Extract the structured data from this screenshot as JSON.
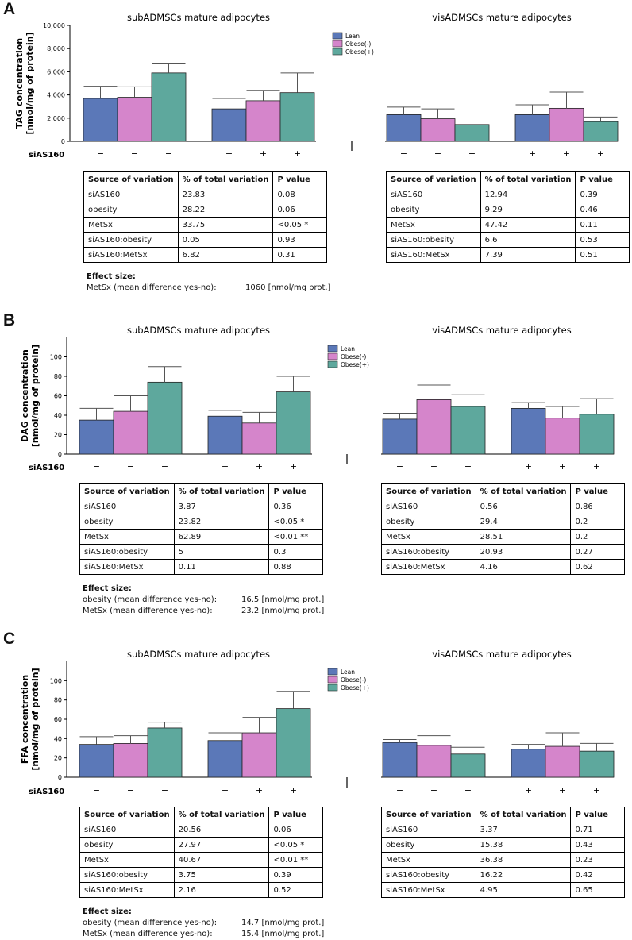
{
  "panels": [
    {
      "letter": "A",
      "y_label": [
        "TAG concentration",
        "[nmol/mg of protein]"
      ],
      "chart_data": {
        "type": "bar",
        "title_left": "subADMSCs mature adipocytes",
        "title_right": "visADMSCs mature adipocytes",
        "ylim": [
          0,
          10000
        ],
        "yticks": [
          "0",
          "2,000",
          "4,000",
          "6,000",
          "8,000",
          "10,000"
        ],
        "ytick_values": [
          0,
          2000,
          4000,
          6000,
          8000,
          10000
        ],
        "legend": [
          "Lean",
          "Obese(-)",
          "Obese(+)"
        ],
        "x_row_label": "siAS160",
        "groups": [
          {
            "name": "sub -",
            "sign": "−",
            "values": [
              3700,
              3800,
              5900
            ],
            "errors": [
              1050,
              900,
              850
            ]
          },
          {
            "name": "sub +",
            "sign": "+",
            "values": [
              2800,
              3500,
              4200
            ],
            "errors": [
              900,
              900,
              1700
            ]
          },
          {
            "name": "vis -",
            "sign": "−",
            "values": [
              2300,
              1950,
              1450
            ],
            "errors": [
              650,
              850,
              300
            ]
          },
          {
            "name": "vis +",
            "sign": "+",
            "values": [
              2300,
              2850,
              1700
            ],
            "errors": [
              850,
              1400,
              400
            ]
          }
        ]
      },
      "tables": [
        {
          "headers": [
            "Source of variation",
            "% of total variation",
            "P value"
          ],
          "rows": [
            [
              "siAS160",
              "23.83",
              "0.08"
            ],
            [
              "obesity",
              "28.22",
              "0.06"
            ],
            [
              "MetSx",
              "33.75",
              "<0.05 *"
            ],
            [
              "siAS160:obesity",
              "0.05",
              "0.93"
            ],
            [
              "siAS160:MetSx",
              "6.82",
              "0.31"
            ]
          ]
        },
        {
          "headers": [
            "Source of variation",
            "% of total variation",
            "P value"
          ],
          "rows": [
            [
              "siAS160",
              "12.94",
              "0.39"
            ],
            [
              "obesity",
              "9.29",
              "0.46"
            ],
            [
              "MetSx",
              "47.42",
              "0.11"
            ],
            [
              "siAS160:obesity",
              "6.6",
              "0.53"
            ],
            [
              "siAS160:MetSx",
              "7.39",
              "0.51"
            ]
          ]
        }
      ],
      "effect": {
        "title": "Effect size:",
        "rows": [
          [
            "MetSx (mean difference yes-no):",
            "1060 [nmol/mg prot.]"
          ]
        ]
      }
    },
    {
      "letter": "B",
      "y_label": [
        "DAG concentration",
        "[nmol/mg of protein]"
      ],
      "chart_data": {
        "type": "bar",
        "title_left": "subADMSCs mature adipocytes",
        "title_right": "visADMSCs mature adipocytes",
        "ylim": [
          0,
          120
        ],
        "yticks": [
          "0",
          "20",
          "40",
          "60",
          "80",
          "100"
        ],
        "ytick_values": [
          0,
          20,
          40,
          60,
          80,
          100
        ],
        "legend": [
          "Lean",
          "Obese(-)",
          "Obese(+)"
        ],
        "x_row_label": "siAS160",
        "groups": [
          {
            "name": "sub -",
            "sign": "−",
            "values": [
              35,
              44,
              74
            ],
            "errors": [
              12,
              16,
              16
            ]
          },
          {
            "name": "sub +",
            "sign": "+",
            "values": [
              39,
              32,
              64
            ],
            "errors": [
              6,
              11,
              16
            ]
          },
          {
            "name": "vis -",
            "sign": "−",
            "values": [
              36,
              56,
              49
            ],
            "errors": [
              6,
              15,
              12
            ]
          },
          {
            "name": "vis +",
            "sign": "+",
            "values": [
              47,
              37,
              41
            ],
            "errors": [
              6,
              12,
              16
            ]
          }
        ]
      },
      "tables": [
        {
          "headers": [
            "Source of variation",
            "% of total variation",
            "P value"
          ],
          "rows": [
            [
              "siAS160",
              "3.87",
              "0.36"
            ],
            [
              "obesity",
              "23.82",
              "<0.05 *"
            ],
            [
              "MetSx",
              "62.89",
              "<0.01 **"
            ],
            [
              "siAS160:obesity",
              "5",
              "0.3"
            ],
            [
              "siAS160:MetSx",
              "0.11",
              "0.88"
            ]
          ]
        },
        {
          "headers": [
            "Source of variation",
            "% of total variation",
            "P value"
          ],
          "rows": [
            [
              "siAS160",
              "0.56",
              "0.86"
            ],
            [
              "obesity",
              "29.4",
              "0.2"
            ],
            [
              "MetSx",
              "28.51",
              "0.2"
            ],
            [
              "siAS160:obesity",
              "20.93",
              "0.27"
            ],
            [
              "siAS160:MetSx",
              "4.16",
              "0.62"
            ]
          ]
        }
      ],
      "effect": {
        "title": "Effect size:",
        "rows": [
          [
            "obesity (mean difference yes-no):",
            "16.5 [nmol/mg prot.]"
          ],
          [
            "MetSx (mean difference yes-no):",
            "23.2 [nmol/mg prot.]"
          ]
        ]
      }
    },
    {
      "letter": "C",
      "y_label": [
        "FFA concentration",
        "[nmol/mg of protein]"
      ],
      "chart_data": {
        "type": "bar",
        "title_left": "subADMSCs mature adipocytes",
        "title_right": "visADMSCs mature adipocytes",
        "ylim": [
          0,
          120
        ],
        "yticks": [
          "0",
          "20",
          "40",
          "60",
          "80",
          "100"
        ],
        "ytick_values": [
          0,
          20,
          40,
          60,
          80,
          100
        ],
        "legend": [
          "Lean",
          "Obese(-)",
          "Obese(+)"
        ],
        "x_row_label": "siAS160",
        "groups": [
          {
            "name": "sub -",
            "sign": "−",
            "values": [
              34,
              35,
              51
            ],
            "errors": [
              8,
              8,
              6
            ]
          },
          {
            "name": "sub +",
            "sign": "+",
            "values": [
              38,
              46,
              71
            ],
            "errors": [
              8,
              16,
              18
            ]
          },
          {
            "name": "vis -",
            "sign": "−",
            "values": [
              36,
              33,
              24
            ],
            "errors": [
              3,
              10,
              7
            ]
          },
          {
            "name": "vis +",
            "sign": "+",
            "values": [
              29,
              32,
              27
            ],
            "errors": [
              5,
              14,
              8
            ]
          }
        ]
      },
      "tables": [
        {
          "headers": [
            "Source of variation",
            "% of total variation",
            "P value"
          ],
          "rows": [
            [
              "siAS160",
              "20.56",
              "0.06"
            ],
            [
              "obesity",
              "27.97",
              "<0.05 *"
            ],
            [
              "MetSx",
              "40.67",
              "<0.01 **"
            ],
            [
              "siAS160:obesity",
              "3.75",
              "0.39"
            ],
            [
              "siAS160:MetSx",
              "2.16",
              "0.52"
            ]
          ]
        },
        {
          "headers": [
            "Source of variation",
            "% of total variation",
            "P value"
          ],
          "rows": [
            [
              "siAS160",
              "3.37",
              "0.71"
            ],
            [
              "obesity",
              "15.38",
              "0.43"
            ],
            [
              "MetSx",
              "36.38",
              "0.23"
            ],
            [
              "siAS160:obesity",
              "16.22",
              "0.42"
            ],
            [
              "siAS160:MetSx",
              "4.95",
              "0.65"
            ]
          ]
        }
      ],
      "effect": {
        "title": "Effect size:",
        "rows": [
          [
            "obesity (mean difference yes-no):",
            "14.7 [nmol/mg prot.]"
          ],
          [
            "MetSx (mean difference yes-no):",
            "15.4 [nmol/mg prot.]"
          ]
        ]
      }
    }
  ],
  "colors": {
    "series": [
      "#5b78b8",
      "#d585cb",
      "#5ea89d"
    ]
  }
}
